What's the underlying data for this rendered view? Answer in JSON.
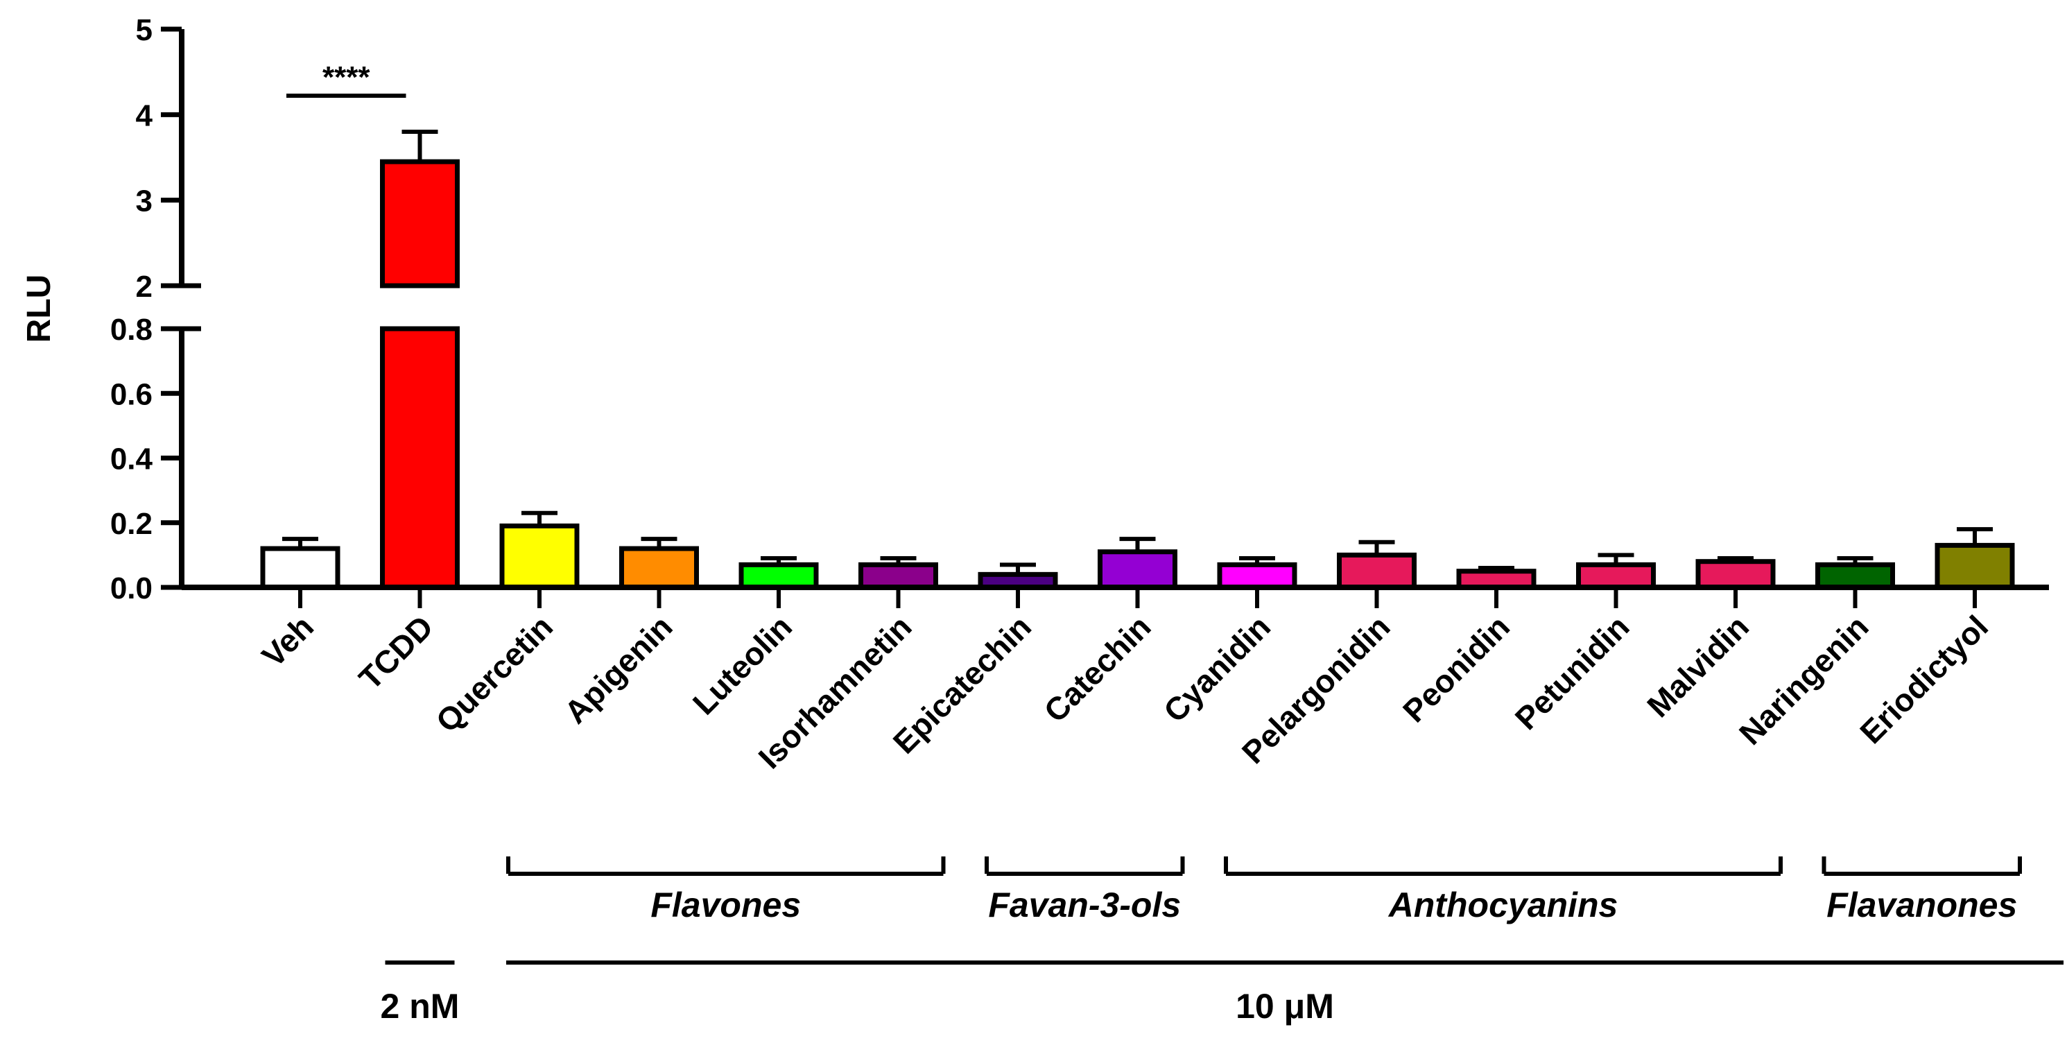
{
  "chart_data": {
    "type": "bar",
    "title": "",
    "xlabel": "",
    "ylabel": "RLU",
    "axis_break": {
      "lower_range": [
        0,
        0.8
      ],
      "upper_range": [
        2,
        5
      ]
    },
    "lower_ticks": [
      "0.0",
      "0.2",
      "0.4",
      "0.6",
      "0.8"
    ],
    "upper_ticks": [
      "2",
      "3",
      "4",
      "5"
    ],
    "categories": [
      "Veh",
      "TCDD",
      "Quercetin",
      "Apigenin",
      "Luteolin",
      "Isorhamnetin",
      "Epicatechin",
      "Catechin",
      "Cyanidin",
      "Pelargonidin",
      "Peonidin",
      "Petunidin",
      "Malvidin",
      "Naringenin",
      "Eriodictyol"
    ],
    "values": [
      0.12,
      3.45,
      0.19,
      0.12,
      0.07,
      0.07,
      0.04,
      0.11,
      0.07,
      0.1,
      0.05,
      0.07,
      0.08,
      0.07,
      0.13
    ],
    "errors": [
      0.03,
      0.35,
      0.04,
      0.03,
      0.02,
      0.02,
      0.03,
      0.04,
      0.02,
      0.04,
      0.01,
      0.03,
      0.01,
      0.02,
      0.05
    ],
    "colors": [
      "#ffffff",
      "#ff0000",
      "#ffff00",
      "#ff8c00",
      "#00ff00",
      "#8b008b",
      "#4b0082",
      "#9400d3",
      "#ff00ff",
      "#e6195b",
      "#e6195b",
      "#e6195b",
      "#e6195b",
      "#006400",
      "#808000"
    ],
    "significance": {
      "from": "Veh",
      "to": "TCDD",
      "label": "****"
    },
    "groups": [
      {
        "label": "Flavones",
        "from": "Quercetin",
        "to": "Isorhamnetin"
      },
      {
        "label": "Favan-3-ols",
        "from": "Epicatechin",
        "to": "Catechin"
      },
      {
        "label": "Anthocyanins",
        "from": "Cyanidin",
        "to": "Malvidin"
      },
      {
        "label": "Flavanones",
        "from": "Naringenin",
        "to": "Eriodictyol"
      }
    ],
    "concentrations": [
      {
        "label": "2 nM",
        "from": "TCDD",
        "to": "TCDD"
      },
      {
        "label": "10 μM",
        "from": "Quercetin",
        "to": "Eriodictyol"
      }
    ]
  }
}
